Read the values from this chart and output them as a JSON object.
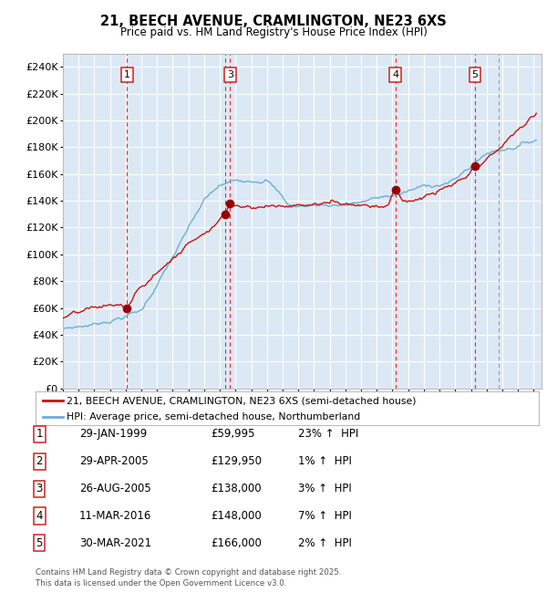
{
  "title": "21, BEECH AVENUE, CRAMLINGTON, NE23 6XS",
  "subtitle": "Price paid vs. HM Land Registry's House Price Index (HPI)",
  "legend_line1": "21, BEECH AVENUE, CRAMLINGTON, NE23 6XS (semi-detached house)",
  "legend_line2": "HPI: Average price, semi-detached house, Northumberland",
  "footer1": "Contains HM Land Registry data © Crown copyright and database right 2025.",
  "footer2": "This data is licensed under the Open Government Licence v3.0.",
  "sales": [
    {
      "num": 1,
      "date": "29-JAN-1999",
      "price": 59995,
      "pct": "23%",
      "dir": "↑"
    },
    {
      "num": 2,
      "date": "29-APR-2005",
      "price": 129950,
      "pct": "1%",
      "dir": "↑"
    },
    {
      "num": 3,
      "date": "26-AUG-2005",
      "price": 138000,
      "pct": "3%",
      "dir": "↑"
    },
    {
      "num": 4,
      "date": "11-MAR-2016",
      "price": 148000,
      "pct": "7%",
      "dir": "↑"
    },
    {
      "num": 5,
      "date": "30-MAR-2021",
      "price": 166000,
      "pct": "2%",
      "dir": "↑"
    }
  ],
  "sale_x_years": [
    1999.08,
    2005.33,
    2005.65,
    2016.19,
    2021.25
  ],
  "sale_prices": [
    59995,
    129950,
    138000,
    148000,
    166000
  ],
  "box_sales": [
    {
      "x": 1999.08,
      "label": "1"
    },
    {
      "x": 2005.65,
      "label": "3"
    },
    {
      "x": 2016.19,
      "label": "4"
    },
    {
      "x": 2021.25,
      "label": "5"
    }
  ],
  "vlines_red": [
    1999.08,
    2005.33,
    2005.65,
    2016.19,
    2021.25
  ],
  "vline_gray_dashed": 2022.75,
  "ylim": [
    0,
    250000
  ],
  "yticks": [
    0,
    20000,
    40000,
    60000,
    80000,
    100000,
    120000,
    140000,
    160000,
    180000,
    200000,
    220000,
    240000
  ],
  "xlim_start": 1995.0,
  "xlim_end": 2025.5,
  "hpi_color": "#6baed6",
  "price_color": "#cc1111",
  "dot_color": "#990000",
  "background_color": "#dce9f5",
  "grid_color": "#ffffff",
  "border_color": "#bbbbbb"
}
